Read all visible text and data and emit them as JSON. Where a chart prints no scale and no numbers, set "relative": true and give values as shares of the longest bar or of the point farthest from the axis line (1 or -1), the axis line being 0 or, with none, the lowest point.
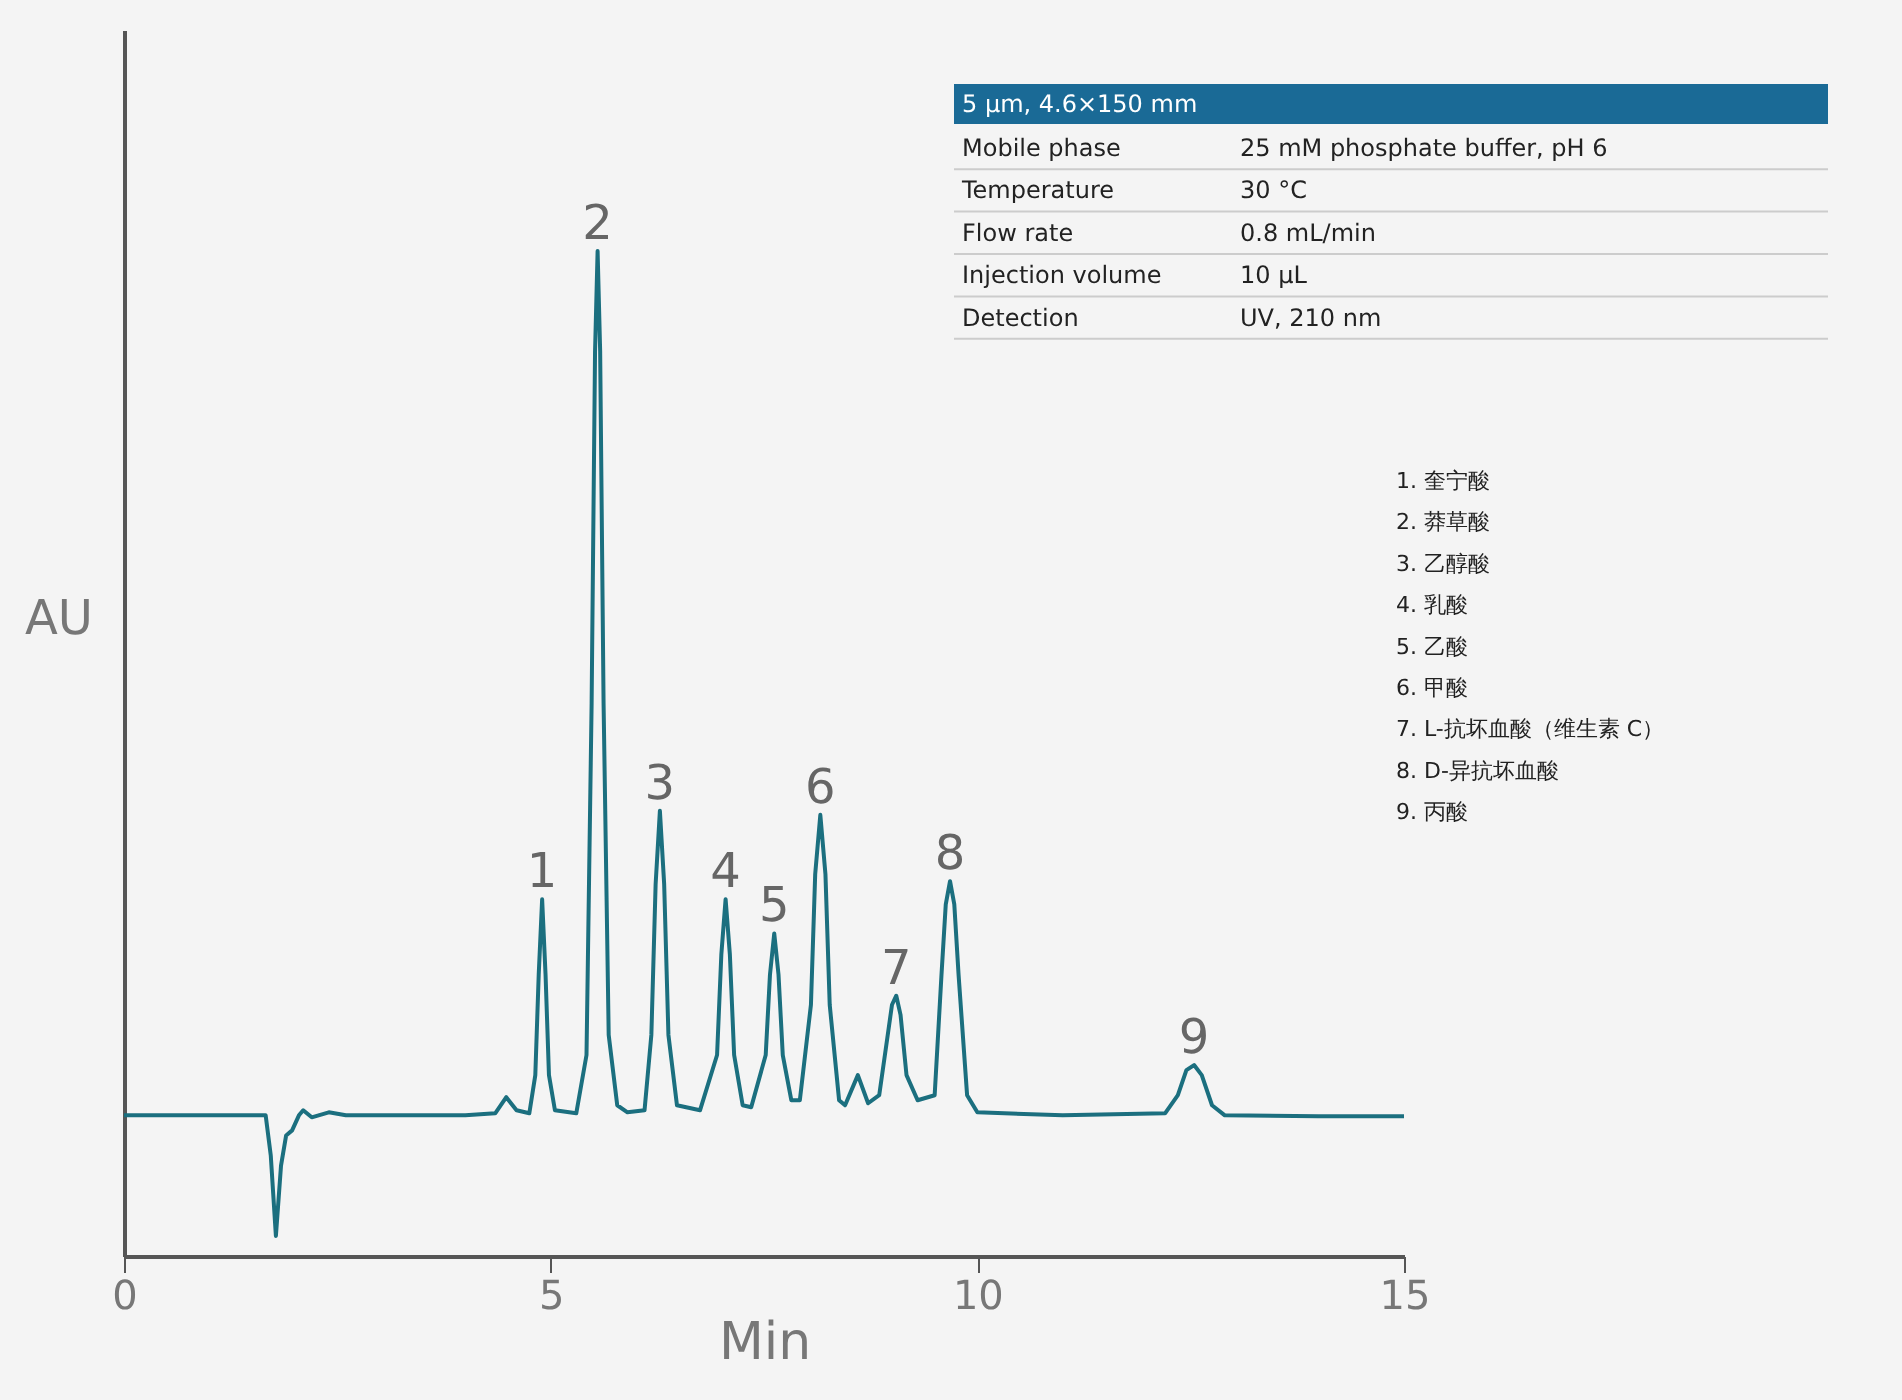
{
  "chart_data": {
    "type": "line",
    "relative": true,
    "xlabel": "Min",
    "ylabel": "AU",
    "xlim": [
      0,
      15
    ],
    "xticks": [
      0,
      5,
      10,
      15
    ],
    "grid": false,
    "marker": "none",
    "line_style": "solid",
    "x": [
      0,
      1.5,
      1.66,
      1.72,
      1.78,
      1.84,
      1.9,
      1.97,
      2.05,
      2.1,
      2.2,
      2.4,
      2.6,
      3.0,
      4.0,
      4.35,
      4.48,
      4.6,
      4.75,
      4.82,
      4.86,
      4.9,
      4.94,
      4.98,
      5.05,
      5.3,
      5.42,
      5.48,
      5.52,
      5.55,
      5.58,
      5.62,
      5.68,
      5.78,
      5.9,
      6.1,
      6.18,
      6.23,
      6.28,
      6.33,
      6.38,
      6.48,
      6.75,
      6.95,
      7.0,
      7.05,
      7.1,
      7.15,
      7.25,
      7.35,
      7.52,
      7.57,
      7.62,
      7.67,
      7.72,
      7.82,
      7.92,
      8.05,
      8.1,
      8.16,
      8.22,
      8.27,
      8.38,
      8.45,
      8.6,
      8.72,
      8.85,
      8.95,
      9.0,
      9.05,
      9.1,
      9.17,
      9.3,
      9.5,
      9.58,
      9.63,
      9.68,
      9.73,
      9.78,
      9.88,
      10.0,
      11,
      12.2,
      12.35,
      12.45,
      12.54,
      12.63,
      12.75,
      12.9,
      14,
      15
    ],
    "series": [
      {
        "color": "#1b6f7f",
        "values": [
          0.14,
          0.14,
          0.14,
          0.1,
          0.02,
          0.09,
          0.12,
          0.125,
          0.14,
          0.145,
          0.138,
          0.143,
          0.14,
          0.14,
          0.14,
          0.142,
          0.158,
          0.145,
          0.142,
          0.18,
          0.28,
          0.355,
          0.28,
          0.18,
          0.145,
          0.142,
          0.2,
          0.55,
          0.9,
          1.0,
          0.9,
          0.55,
          0.22,
          0.15,
          0.143,
          0.145,
          0.22,
          0.37,
          0.443,
          0.37,
          0.22,
          0.15,
          0.145,
          0.2,
          0.3,
          0.355,
          0.3,
          0.2,
          0.15,
          0.148,
          0.2,
          0.28,
          0.321,
          0.28,
          0.2,
          0.155,
          0.155,
          0.25,
          0.38,
          0.439,
          0.38,
          0.25,
          0.155,
          0.15,
          0.18,
          0.152,
          0.16,
          0.22,
          0.25,
          0.259,
          0.24,
          0.18,
          0.155,
          0.16,
          0.28,
          0.35,
          0.373,
          0.35,
          0.28,
          0.16,
          0.143,
          0.14,
          0.142,
          0.16,
          0.185,
          0.19,
          0.18,
          0.15,
          0.14,
          0.139,
          0.139
        ]
      }
    ],
    "annotations": [
      "5 µm, 4.6×150 mm",
      "Mobile phase",
      "25 mM phosphate buffer, pH 6",
      "Temperature",
      "30 °C",
      "Flow rate",
      "0.8 mL/min",
      "Injection volume",
      "10 µL",
      "Detection",
      "UV, 210 nm",
      "1. 奎宁酸",
      "2. 莽草酸",
      "3. 乙醇酸",
      "4. 乳酸",
      "5. 乙酸",
      "6. 甲酸",
      "7. L-抗坏血酸（维生素 C）",
      "8. D-异抗坏血酸",
      "9. 丙酸",
      {
        "text": "1",
        "x": 4.9,
        "y": 0.355
      },
      {
        "text": "2",
        "x": 5.55,
        "y": 1.0
      },
      {
        "text": "3",
        "x": 6.28,
        "y": 0.443
      },
      {
        "text": "4",
        "x": 7.05,
        "y": 0.355
      },
      {
        "text": "5",
        "x": 7.62,
        "y": 0.321
      },
      {
        "text": "6",
        "x": 8.16,
        "y": 0.439
      },
      {
        "text": "7",
        "x": 9.05,
        "y": 0.259
      },
      {
        "text": "8",
        "x": 9.68,
        "y": 0.373
      },
      {
        "text": "9",
        "x": 12.54,
        "y": 0.19
      }
    ]
  }
}
